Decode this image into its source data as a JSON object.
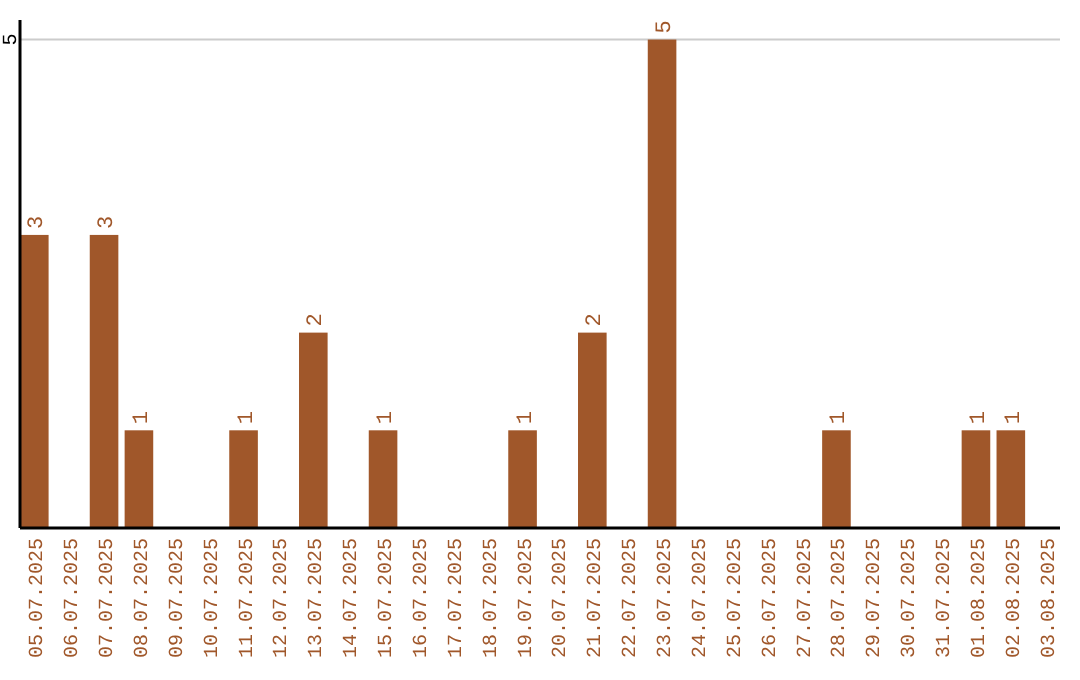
{
  "chart_data": {
    "type": "bar",
    "categories": [
      "05.07.2025",
      "06.07.2025",
      "07.07.2025",
      "08.07.2025",
      "09.07.2025",
      "10.07.2025",
      "11.07.2025",
      "12.07.2025",
      "13.07.2025",
      "14.07.2025",
      "15.07.2025",
      "16.07.2025",
      "17.07.2025",
      "18.07.2025",
      "19.07.2025",
      "20.07.2025",
      "21.07.2025",
      "22.07.2025",
      "23.07.2025",
      "24.07.2025",
      "25.07.2025",
      "26.07.2025",
      "27.07.2025",
      "28.07.2025",
      "29.07.2025",
      "30.07.2025",
      "31.07.2025",
      "01.08.2025",
      "02.08.2025",
      "03.08.2025"
    ],
    "values": [
      3,
      0,
      3,
      1,
      0,
      0,
      1,
      0,
      2,
      0,
      1,
      0,
      0,
      0,
      1,
      0,
      2,
      0,
      5,
      0,
      0,
      0,
      0,
      1,
      0,
      0,
      0,
      1,
      1,
      0
    ],
    "value_labels": [
      "3",
      null,
      "3",
      "1",
      null,
      null,
      "1",
      null,
      "2",
      null,
      "1",
      null,
      null,
      null,
      "1",
      null,
      "2",
      null,
      "5",
      null,
      null,
      null,
      null,
      "1",
      null,
      null,
      null,
      "1",
      "1",
      null
    ],
    "color": "#a0572a",
    "ylim": [
      0,
      5.2
    ],
    "yticks": [
      5
    ],
    "grid": "y"
  }
}
